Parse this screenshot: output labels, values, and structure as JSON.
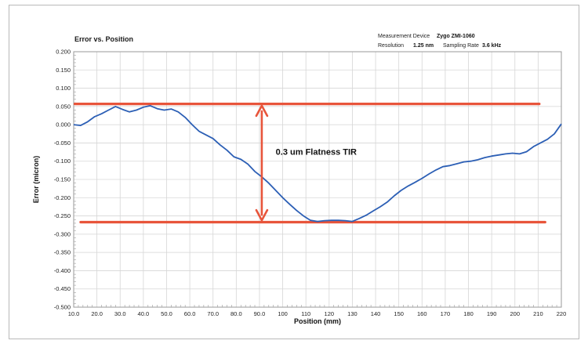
{
  "chart_data": {
    "type": "line",
    "title": "Error vs. Position",
    "xlabel": "Position (mm)",
    "ylabel": "Error (micron)",
    "xlim": [
      10,
      220
    ],
    "ylim": [
      -0.5,
      0.2
    ],
    "x_ticks": [
      "10.0",
      "20.0",
      "30.0",
      "40.0",
      "50.0",
      "60.0",
      "70.0",
      "80.0",
      "90.0",
      "100",
      "110",
      "120",
      "130",
      "140",
      "150",
      "160",
      "170",
      "180",
      "190",
      "200",
      "210",
      "220"
    ],
    "y_ticks": [
      "0.200",
      "0.150",
      "0.100",
      "0.050",
      "0.000",
      "-0.050",
      "-0.100",
      "-0.150",
      "-0.200",
      "-0.250",
      "-0.300",
      "-0.350",
      "-0.400",
      "-0.450",
      "-0.500"
    ],
    "grid": true,
    "series": [
      {
        "color": "#2c5fb5",
        "x": [
          10,
          13,
          16,
          19,
          22,
          25,
          28,
          31,
          34,
          37,
          40,
          43,
          46,
          49,
          52,
          55,
          58,
          61,
          64,
          67,
          70,
          73,
          76,
          79,
          82,
          85,
          88,
          91,
          94,
          97,
          100,
          103,
          106,
          109,
          112,
          115,
          118,
          121,
          124,
          127,
          130,
          133,
          136,
          139,
          142,
          145,
          148,
          151,
          154,
          157,
          160,
          163,
          166,
          169,
          172,
          175,
          178,
          181,
          184,
          187,
          190,
          193,
          196,
          199,
          202,
          205,
          208,
          211,
          214,
          217,
          220
        ],
        "y": [
          0.0,
          -0.002,
          0.008,
          0.022,
          0.03,
          0.04,
          0.05,
          0.042,
          0.035,
          0.04,
          0.048,
          0.052,
          0.044,
          0.04,
          0.043,
          0.035,
          0.02,
          0.0,
          -0.018,
          -0.028,
          -0.038,
          -0.055,
          -0.07,
          -0.088,
          -0.095,
          -0.108,
          -0.128,
          -0.143,
          -0.16,
          -0.18,
          -0.2,
          -0.218,
          -0.235,
          -0.25,
          -0.262,
          -0.265,
          -0.263,
          -0.262,
          -0.262,
          -0.263,
          -0.265,
          -0.257,
          -0.248,
          -0.236,
          -0.225,
          -0.212,
          -0.195,
          -0.18,
          -0.168,
          -0.158,
          -0.147,
          -0.135,
          -0.124,
          -0.115,
          -0.112,
          -0.107,
          -0.102,
          -0.1,
          -0.096,
          -0.09,
          -0.086,
          -0.083,
          -0.08,
          -0.078,
          -0.08,
          -0.074,
          -0.06,
          -0.05,
          -0.04,
          -0.025,
          0.002
        ]
      }
    ],
    "reference_lines": [
      {
        "label": "upper",
        "y": 0.057,
        "x_start": 10.5,
        "x_end": 210.5,
        "color": "#e8553b"
      },
      {
        "label": "lower",
        "y": -0.267,
        "x_start": 13,
        "x_end": 213,
        "color": "#e8553b"
      }
    ],
    "annotation": {
      "text": "0.3 um Flatness TIR",
      "arrow_x": 91,
      "arrow_from": 0.052,
      "arrow_to": -0.262,
      "text_x": 97,
      "text_y": -0.082,
      "color": "#e8553b"
    }
  },
  "header": {
    "device_label": "Measurement Device",
    "device_value": "Zygo ZMI-1060",
    "resolution_label": "Resolution",
    "resolution_value": "1.25 nm",
    "sampling_label": "Sampling Rate",
    "sampling_value": "3.6 kHz"
  }
}
